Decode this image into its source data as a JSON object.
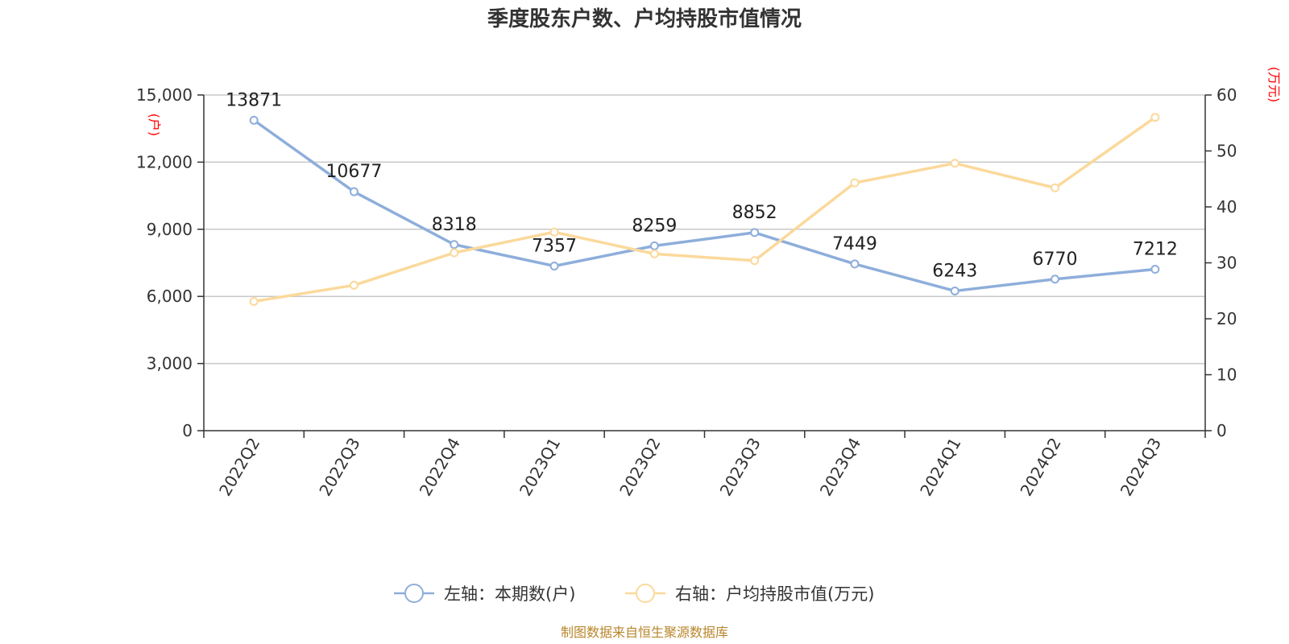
{
  "chart_data": {
    "type": "line",
    "title": "季度股东户数、户均持股市值情况",
    "categories": [
      "2022Q2",
      "2022Q3",
      "2022Q4",
      "2023Q1",
      "2023Q2",
      "2023Q3",
      "2023Q4",
      "2024Q1",
      "2024Q2",
      "2024Q3"
    ],
    "y_left": {
      "unit": "(户)",
      "range": [
        0,
        15000
      ],
      "ticks": [
        0,
        3000,
        6000,
        9000,
        12000,
        15000
      ],
      "tick_labels": [
        "0",
        "3,000",
        "6,000",
        "9,000",
        "12,000",
        "15,000"
      ]
    },
    "y_right": {
      "unit": "(万元)",
      "range": [
        0,
        60
      ],
      "ticks": [
        0,
        10,
        20,
        30,
        40,
        50,
        60
      ],
      "tick_labels": [
        "0",
        "10",
        "20",
        "30",
        "40",
        "50",
        "60"
      ]
    },
    "series": [
      {
        "name": "左轴：本期数(户)",
        "axis": "left",
        "color": "#8eaedb",
        "values": [
          13871,
          10677,
          8318,
          7357,
          8259,
          8852,
          7449,
          6243,
          6770,
          7212
        ],
        "labels": [
          "13871",
          "10677",
          "8318",
          "7357",
          "8259",
          "8852",
          "7449",
          "6243",
          "6770",
          "7212"
        ]
      },
      {
        "name": "右轴：户均持股市值(万元)",
        "axis": "right",
        "color": "#fbd99b",
        "values": [
          23.1,
          26.0,
          31.8,
          35.5,
          31.6,
          30.4,
          44.3,
          47.8,
          43.4,
          56.0
        ]
      }
    ],
    "grid": true,
    "legend_position": "bottom-center",
    "source": "制图数据来自恒生聚源数据库"
  }
}
